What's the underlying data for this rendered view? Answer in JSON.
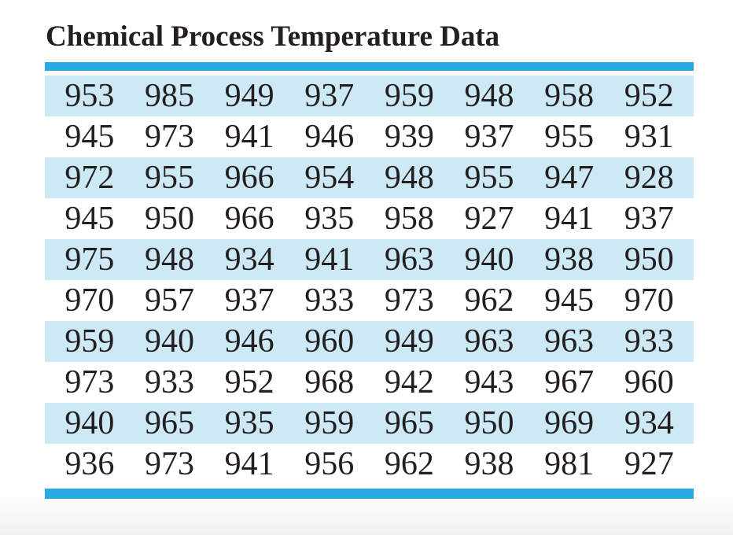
{
  "title": "Chemical Process Temperature Data",
  "colors": {
    "accent": "#29ABE2",
    "stripe": "#CDE9F5",
    "text": "#231F20",
    "background": "#FFFFFF",
    "footer_fade": "#F1F1F1"
  },
  "chart_data": {
    "type": "table",
    "title": "Chemical Process Temperature Data",
    "columns": 8,
    "rows": [
      [
        953,
        985,
        949,
        937,
        959,
        948,
        958,
        952
      ],
      [
        945,
        973,
        941,
        946,
        939,
        937,
        955,
        931
      ],
      [
        972,
        955,
        966,
        954,
        948,
        955,
        947,
        928
      ],
      [
        945,
        950,
        966,
        935,
        958,
        927,
        941,
        937
      ],
      [
        975,
        948,
        934,
        941,
        963,
        940,
        938,
        950
      ],
      [
        970,
        957,
        937,
        933,
        973,
        962,
        945,
        970
      ],
      [
        959,
        940,
        946,
        960,
        949,
        963,
        963,
        933
      ],
      [
        973,
        933,
        952,
        968,
        942,
        943,
        967,
        960
      ],
      [
        940,
        965,
        935,
        959,
        965,
        950,
        969,
        934
      ],
      [
        936,
        973,
        941,
        956,
        962,
        938,
        981,
        927
      ]
    ],
    "layout_hints": {
      "striped_rows": "odd rows light blue, even rows white",
      "top_rule": true,
      "bottom_rule": true,
      "legend": "none",
      "grid": "off"
    }
  }
}
